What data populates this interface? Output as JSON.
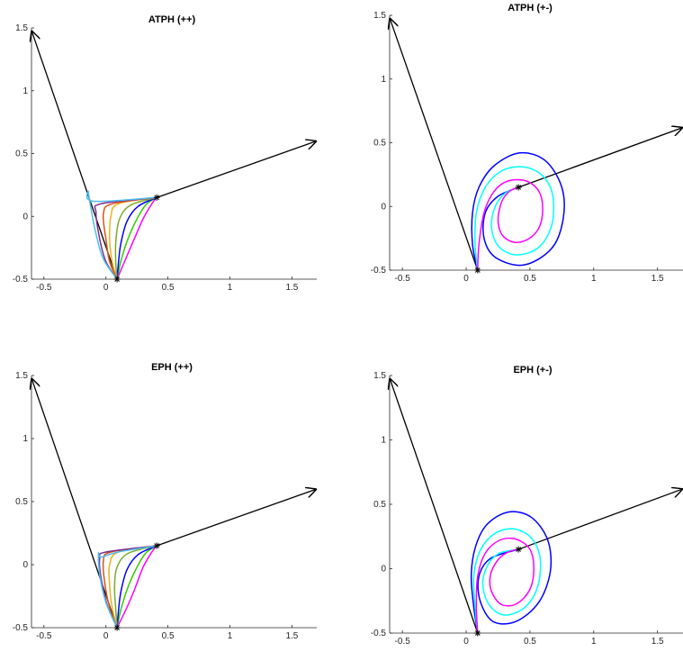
{
  "chart_data": [
    {
      "type": "line",
      "title": "ATPH (++)",
      "xlabel": "",
      "ylabel": "",
      "xlim": [
        -0.6,
        1.7
      ],
      "ylim": [
        -0.5,
        1.5
      ],
      "xticks": [
        "-0.5",
        "0",
        "0.5",
        "1",
        "1.5"
      ],
      "yticks": [
        "-0.5",
        "0",
        "0.5",
        "1",
        "1.5"
      ],
      "grid": false,
      "arrows": [
        {
          "from": [
            0.09,
            -0.5
          ],
          "to": [
            -0.6,
            1.48
          ],
          "color": "#000000"
        },
        {
          "from": [
            0.41,
            0.15
          ],
          "to": [
            1.7,
            0.6
          ],
          "color": "#000000"
        }
      ],
      "markers": [
        [
          0.09,
          -0.5
        ],
        [
          0.41,
          0.15
        ]
      ],
      "series": [
        {
          "color": "#ff00ff",
          "points": [
            [
              0.09,
              -0.5
            ],
            [
              0.15,
              -0.36
            ],
            [
              0.22,
              -0.2
            ],
            [
              0.3,
              -0.02
            ],
            [
              0.37,
              0.1
            ],
            [
              0.41,
              0.15
            ]
          ]
        },
        {
          "color": "#33cc00",
          "points": [
            [
              0.09,
              -0.5
            ],
            [
              0.12,
              -0.36
            ],
            [
              0.17,
              -0.2
            ],
            [
              0.24,
              -0.04
            ],
            [
              0.32,
              0.09
            ],
            [
              0.41,
              0.15
            ]
          ]
        },
        {
          "color": "#0000ff",
          "points": [
            [
              0.09,
              -0.5
            ],
            [
              0.1,
              -0.38
            ],
            [
              0.12,
              -0.22
            ],
            [
              0.17,
              -0.04
            ],
            [
              0.26,
              0.08
            ],
            [
              0.41,
              0.15
            ]
          ]
        },
        {
          "color": "#77ac30",
          "points": [
            [
              0.09,
              -0.5
            ],
            [
              0.08,
              -0.38
            ],
            [
              0.08,
              -0.2
            ],
            [
              0.11,
              -0.02
            ],
            [
              0.2,
              0.09
            ],
            [
              0.41,
              0.15
            ]
          ]
        },
        {
          "color": "#edb120",
          "points": [
            [
              0.09,
              -0.5
            ],
            [
              0.05,
              -0.36
            ],
            [
              0.03,
              -0.18
            ],
            [
              0.04,
              0.0
            ],
            [
              0.1,
              0.1
            ],
            [
              0.41,
              0.15
            ]
          ]
        },
        {
          "color": "#d95319",
          "points": [
            [
              0.09,
              -0.5
            ],
            [
              0.03,
              -0.36
            ],
            [
              0.0,
              -0.18
            ],
            [
              -0.02,
              0.02
            ],
            [
              0.05,
              0.1
            ],
            [
              0.41,
              0.15
            ]
          ]
        },
        {
          "color": "#7e2f8e",
          "points": [
            [
              0.09,
              -0.5
            ],
            [
              0.0,
              -0.36
            ],
            [
              -0.05,
              -0.18
            ],
            [
              -0.08,
              0.03
            ],
            [
              -0.04,
              0.1
            ],
            [
              0.41,
              0.15
            ]
          ]
        },
        {
          "color": "#4dbeee",
          "points": [
            [
              0.09,
              -0.5
            ],
            [
              -0.02,
              -0.34
            ],
            [
              -0.08,
              -0.14
            ],
            [
              -0.12,
              0.06
            ],
            [
              -0.14,
              0.2
            ],
            [
              -0.1,
              0.12
            ],
            [
              0.41,
              0.15
            ]
          ]
        }
      ]
    },
    {
      "type": "line",
      "title": "ATPH (+-)",
      "xlabel": "",
      "ylabel": "",
      "xlim": [
        -0.6,
        1.7
      ],
      "ylim": [
        -0.5,
        1.5
      ],
      "xticks": [
        "-0.5",
        "0",
        "0.5",
        "1",
        "1.5"
      ],
      "yticks": [
        "-0.5",
        "0",
        "0.5",
        "1",
        "1.5"
      ],
      "grid": false,
      "arrows": [
        {
          "from": [
            0.09,
            -0.5
          ],
          "to": [
            -0.6,
            1.48
          ],
          "color": "#000000"
        },
        {
          "from": [
            0.41,
            0.15
          ],
          "to": [
            1.7,
            0.62
          ],
          "color": "#000000"
        }
      ],
      "markers": [
        [
          0.09,
          -0.5
        ],
        [
          0.41,
          0.15
        ]
      ],
      "series": [
        {
          "color": "#0000ff",
          "points": [
            [
              0.09,
              -0.5
            ],
            [
              0.05,
              -0.3
            ],
            [
              0.05,
              -0.05
            ],
            [
              0.1,
              0.15
            ],
            [
              0.22,
              0.32
            ],
            [
              0.42,
              0.42
            ],
            [
              0.62,
              0.36
            ],
            [
              0.75,
              0.15
            ],
            [
              0.76,
              -0.1
            ],
            [
              0.67,
              -0.33
            ],
            [
              0.45,
              -0.46
            ],
            [
              0.23,
              -0.4
            ],
            [
              0.14,
              -0.25
            ],
            [
              0.15,
              -0.05
            ],
            [
              0.25,
              0.08
            ],
            [
              0.41,
              0.15
            ]
          ]
        },
        {
          "color": "#00ffff",
          "points": [
            [
              0.09,
              -0.5
            ],
            [
              0.07,
              -0.3
            ],
            [
              0.08,
              -0.05
            ],
            [
              0.15,
              0.15
            ],
            [
              0.28,
              0.28
            ],
            [
              0.45,
              0.31
            ],
            [
              0.6,
              0.24
            ],
            [
              0.68,
              0.08
            ],
            [
              0.67,
              -0.15
            ],
            [
              0.57,
              -0.32
            ],
            [
              0.4,
              -0.38
            ],
            [
              0.26,
              -0.32
            ],
            [
              0.2,
              -0.18
            ],
            [
              0.22,
              -0.02
            ],
            [
              0.3,
              0.1
            ],
            [
              0.41,
              0.15
            ]
          ]
        },
        {
          "color": "#ff00ff",
          "points": [
            [
              0.09,
              -0.5
            ],
            [
              0.1,
              -0.3
            ],
            [
              0.14,
              -0.05
            ],
            [
              0.22,
              0.12
            ],
            [
              0.33,
              0.2
            ],
            [
              0.47,
              0.2
            ],
            [
              0.57,
              0.12
            ],
            [
              0.6,
              -0.02
            ],
            [
              0.57,
              -0.17
            ],
            [
              0.48,
              -0.26
            ],
            [
              0.37,
              -0.28
            ],
            [
              0.28,
              -0.22
            ],
            [
              0.25,
              -0.1
            ],
            [
              0.28,
              0.04
            ],
            [
              0.34,
              0.12
            ],
            [
              0.41,
              0.15
            ]
          ]
        }
      ]
    },
    {
      "type": "line",
      "title": "EPH (++)",
      "xlabel": "",
      "ylabel": "",
      "xlim": [
        -0.6,
        1.7
      ],
      "ylim": [
        -0.5,
        1.5
      ],
      "xticks": [
        "-0.5",
        "0",
        "0.5",
        "1",
        "1.5"
      ],
      "yticks": [
        "-0.5",
        "0",
        "0.5",
        "1",
        "1.5"
      ],
      "grid": false,
      "arrows": [
        {
          "from": [
            0.09,
            -0.5
          ],
          "to": [
            -0.6,
            1.48
          ],
          "color": "#000000"
        },
        {
          "from": [
            0.41,
            0.15
          ],
          "to": [
            1.7,
            0.6
          ],
          "color": "#000000"
        }
      ],
      "markers": [
        [
          0.09,
          -0.5
        ],
        [
          0.41,
          0.15
        ]
      ],
      "series": [
        {
          "color": "#ff00ff",
          "points": [
            [
              0.09,
              -0.5
            ],
            [
              0.16,
              -0.36
            ],
            [
              0.23,
              -0.2
            ],
            [
              0.3,
              -0.02
            ],
            [
              0.37,
              0.1
            ],
            [
              0.41,
              0.15
            ]
          ]
        },
        {
          "color": "#33cc00",
          "points": [
            [
              0.09,
              -0.5
            ],
            [
              0.12,
              -0.36
            ],
            [
              0.17,
              -0.2
            ],
            [
              0.24,
              -0.04
            ],
            [
              0.32,
              0.09
            ],
            [
              0.41,
              0.15
            ]
          ]
        },
        {
          "color": "#0000ff",
          "points": [
            [
              0.09,
              -0.5
            ],
            [
              0.1,
              -0.38
            ],
            [
              0.12,
              -0.22
            ],
            [
              0.17,
              -0.04
            ],
            [
              0.26,
              0.08
            ],
            [
              0.41,
              0.15
            ]
          ]
        },
        {
          "color": "#77ac30",
          "points": [
            [
              0.09,
              -0.5
            ],
            [
              0.08,
              -0.36
            ],
            [
              0.07,
              -0.18
            ],
            [
              0.09,
              -0.02
            ],
            [
              0.18,
              0.09
            ],
            [
              0.41,
              0.15
            ]
          ]
        },
        {
          "color": "#edb120",
          "points": [
            [
              0.09,
              -0.5
            ],
            [
              0.05,
              -0.34
            ],
            [
              0.03,
              -0.16
            ],
            [
              0.03,
              0.0
            ],
            [
              0.1,
              0.1
            ],
            [
              0.41,
              0.15
            ]
          ]
        },
        {
          "color": "#d95319",
          "points": [
            [
              0.09,
              -0.5
            ],
            [
              0.03,
              -0.34
            ],
            [
              -0.01,
              -0.14
            ],
            [
              -0.02,
              0.03
            ],
            [
              0.04,
              0.1
            ],
            [
              0.41,
              0.15
            ]
          ]
        },
        {
          "color": "#7e2f8e",
          "points": [
            [
              0.09,
              -0.5
            ],
            [
              0.01,
              -0.32
            ],
            [
              -0.04,
              -0.1
            ],
            [
              -0.05,
              0.05
            ],
            [
              0.0,
              0.1
            ],
            [
              0.41,
              0.15
            ]
          ]
        },
        {
          "color": "#4dbeee",
          "points": [
            [
              0.09,
              -0.5
            ],
            [
              0.0,
              -0.3
            ],
            [
              -0.05,
              -0.08
            ],
            [
              -0.06,
              0.09
            ],
            [
              -0.04,
              0.06
            ],
            [
              0.1,
              0.1
            ],
            [
              0.41,
              0.15
            ]
          ]
        }
      ]
    },
    {
      "type": "line",
      "title": "EPH (+-)",
      "xlabel": "",
      "ylabel": "",
      "xlim": [
        -0.6,
        1.7
      ],
      "ylim": [
        -0.5,
        1.5
      ],
      "xticks": [
        "-0.5",
        "0",
        "0.5",
        "1",
        "1.5"
      ],
      "yticks": [
        "-0.5",
        "0",
        "0.5",
        "1",
        "1.5"
      ],
      "grid": false,
      "arrows": [
        {
          "from": [
            0.09,
            -0.5
          ],
          "to": [
            -0.6,
            1.48
          ],
          "color": "#000000"
        },
        {
          "from": [
            0.41,
            0.15
          ],
          "to": [
            1.7,
            0.62
          ],
          "color": "#000000"
        }
      ],
      "markers": [
        [
          0.09,
          -0.5
        ],
        [
          0.41,
          0.15
        ]
      ],
      "series": [
        {
          "color": "#0000ff",
          "points": [
            [
              0.09,
              -0.5
            ],
            [
              0.06,
              -0.3
            ],
            [
              0.04,
              -0.06
            ],
            [
              0.07,
              0.16
            ],
            [
              0.16,
              0.34
            ],
            [
              0.33,
              0.44
            ],
            [
              0.51,
              0.4
            ],
            [
              0.64,
              0.22
            ],
            [
              0.66,
              -0.02
            ],
            [
              0.57,
              -0.26
            ],
            [
              0.39,
              -0.41
            ],
            [
              0.21,
              -0.41
            ],
            [
              0.11,
              -0.25
            ],
            [
              0.1,
              -0.06
            ],
            [
              0.19,
              0.08
            ],
            [
              0.41,
              0.15
            ]
          ]
        },
        {
          "color": "#00ffff",
          "points": [
            [
              0.09,
              -0.5
            ],
            [
              0.07,
              -0.3
            ],
            [
              0.06,
              -0.06
            ],
            [
              0.11,
              0.14
            ],
            [
              0.22,
              0.27
            ],
            [
              0.37,
              0.31
            ],
            [
              0.51,
              0.24
            ],
            [
              0.58,
              0.08
            ],
            [
              0.56,
              -0.14
            ],
            [
              0.46,
              -0.3
            ],
            [
              0.3,
              -0.36
            ],
            [
              0.18,
              -0.28
            ],
            [
              0.13,
              -0.12
            ],
            [
              0.17,
              0.03
            ],
            [
              0.26,
              0.12
            ],
            [
              0.41,
              0.15
            ]
          ]
        },
        {
          "color": "#ff00ff",
          "points": [
            [
              0.09,
              -0.5
            ],
            [
              0.08,
              -0.3
            ],
            [
              0.09,
              -0.06
            ],
            [
              0.15,
              0.12
            ],
            [
              0.26,
              0.22
            ],
            [
              0.39,
              0.23
            ],
            [
              0.5,
              0.15
            ],
            [
              0.53,
              0.0
            ],
            [
              0.5,
              -0.16
            ],
            [
              0.4,
              -0.27
            ],
            [
              0.28,
              -0.28
            ],
            [
              0.2,
              -0.18
            ],
            [
              0.19,
              -0.05
            ],
            [
              0.25,
              0.07
            ],
            [
              0.33,
              0.13
            ],
            [
              0.41,
              0.15
            ]
          ]
        }
      ]
    }
  ]
}
